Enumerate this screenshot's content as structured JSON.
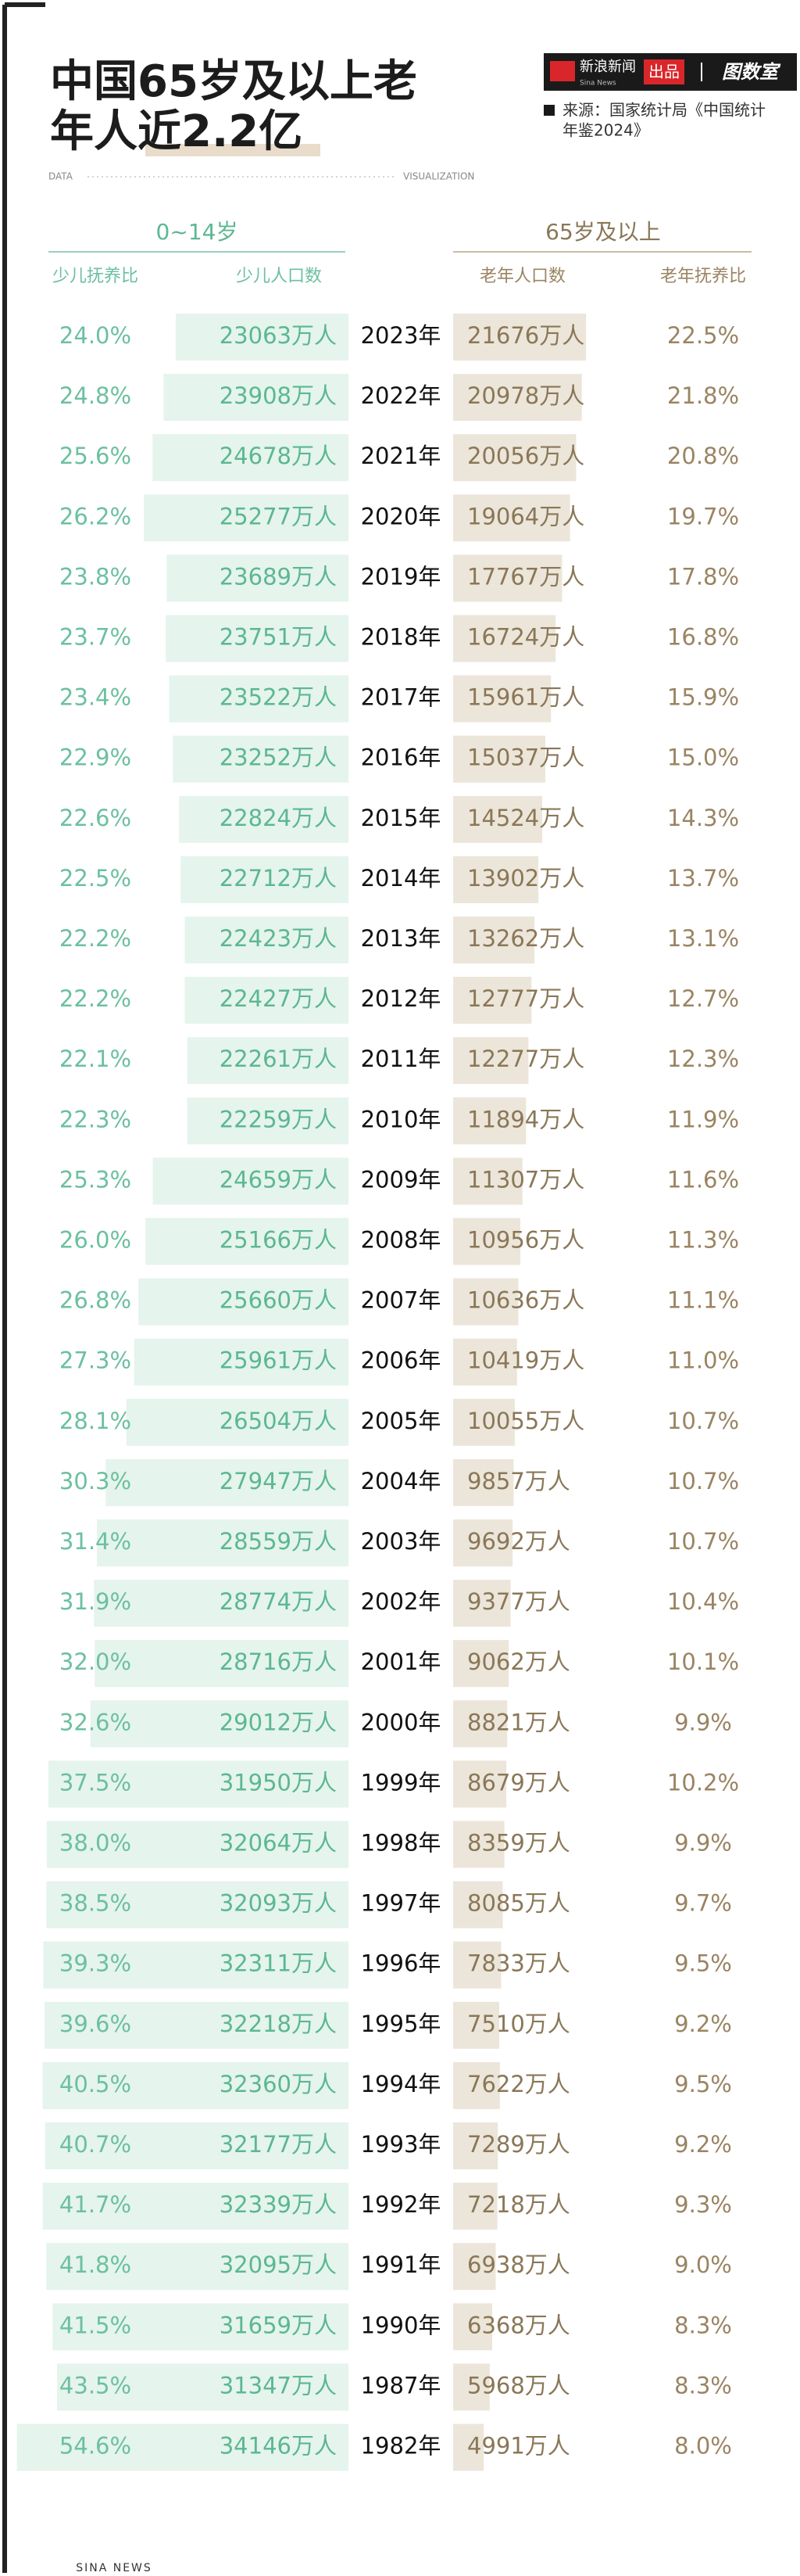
{
  "header": {
    "title_lines": [
      "中国65岁及以上老",
      "年人近2.2亿"
    ],
    "brand": "新浪新闻",
    "brand_en": "Sina News",
    "produced": "出品",
    "column": "图数室",
    "source_lines": [
      "来源：国家统计局《中国统计",
      "年鉴2024》"
    ],
    "data_label": "DATA",
    "vis_label": "VISUALIZATION"
  },
  "chart_data": {
    "type": "mirrored-bar",
    "groups": [
      "0~14岁",
      "65岁及以上"
    ],
    "categories": [
      "2023年",
      "2022年",
      "2021年",
      "2020年",
      "2019年",
      "2018年",
      "2017年",
      "2016年",
      "2015年",
      "2014年",
      "2013年",
      "2012年",
      "2011年",
      "2010年",
      "2009年",
      "2008年",
      "2007年",
      "2006年",
      "2005年",
      "2004年",
      "2003年",
      "2002年",
      "2001年",
      "2000年",
      "1999年",
      "1998年",
      "1997年",
      "1996年",
      "1995年",
      "1994年",
      "1993年",
      "1992年",
      "1991年",
      "1990年",
      "1987年",
      "1982年"
    ],
    "left_ratio": {
      "name": "少儿抚养比",
      "color": "#6cc0a0",
      "values": [
        "24.0%",
        "24.8%",
        "25.6%",
        "26.2%",
        "23.8%",
        "23.7%",
        "23.4%",
        "22.9%",
        "22.6%",
        "22.5%",
        "22.2%",
        "22.2%",
        "22.1%",
        "22.3%",
        "25.3%",
        "26.0%",
        "26.8%",
        "27.3%",
        "28.1%",
        "30.3%",
        "31.4%",
        "31.9%",
        "32.0%",
        "32.6%",
        "37.5%",
        "38.0%",
        "38.5%",
        "39.3%",
        "39.6%",
        "40.5%",
        "40.7%",
        "41.7%",
        "41.8%",
        "41.5%",
        "43.5%",
        "54.6%"
      ]
    },
    "series": [
      {
        "name": "少儿人口数",
        "color": "#e5f4ed",
        "text_color": "#5cb793",
        "xlim": [
          11000,
          35000
        ],
        "values": [
          23063,
          23908,
          24678,
          25277,
          23689,
          23751,
          23522,
          23252,
          22824,
          22712,
          22423,
          22427,
          22261,
          22259,
          24659,
          25166,
          25660,
          25961,
          26504,
          27947,
          28559,
          28774,
          28716,
          29012,
          31950,
          32064,
          32093,
          32311,
          32218,
          32360,
          32177,
          32339,
          32095,
          31659,
          31347,
          34146
        ],
        "value_labels": [
          "23063万人",
          "23908万人",
          "24678万人",
          "25277万人",
          "23689万人",
          "23751万人",
          "23522万人",
          "23252万人",
          "22824万人",
          "22712万人",
          "22423万人",
          "22427万人",
          "22261万人",
          "22259万人",
          "24659万人",
          "25166万人",
          "25660万人",
          "25961万人",
          "26504万人",
          "27947万人",
          "28559万人",
          "28774万人",
          "28716万人",
          "29012万人",
          "31950万人",
          "32064万人",
          "32093万人",
          "32311万人",
          "32218万人",
          "32360万人",
          "32177万人",
          "32339万人",
          "32095万人",
          "31659万人",
          "31347万人",
          "34146万人"
        ]
      },
      {
        "name": "老年人口数",
        "color": "#ece5d9",
        "text_color": "#8a7757",
        "xlim": [
          0,
          60000
        ],
        "values": [
          21676,
          20978,
          20056,
          19064,
          17767,
          16724,
          15961,
          15037,
          14524,
          13902,
          13262,
          12777,
          12277,
          11894,
          11307,
          10956,
          10636,
          10419,
          10055,
          9857,
          9692,
          9377,
          9062,
          8821,
          8679,
          8359,
          8085,
          7833,
          7510,
          7622,
          7289,
          7218,
          6938,
          6368,
          5968,
          4991
        ],
        "value_labels": [
          "21676万人",
          "20978万人",
          "20056万人",
          "19064万人",
          "17767万人",
          "16724万人",
          "15961万人",
          "15037万人",
          "14524万人",
          "13902万人",
          "13262万人",
          "12777万人",
          "12277万人",
          "11894万人",
          "11307万人",
          "10956万人",
          "10636万人",
          "10419万人",
          "10055万人",
          "9857万人",
          "9692万人",
          "9377万人",
          "9062万人",
          "8821万人",
          "8679万人",
          "8359万人",
          "8085万人",
          "7833万人",
          "7510万人",
          "7622万人",
          "7289万人",
          "7218万人",
          "6938万人",
          "6368万人",
          "5968万人",
          "4991万人"
        ]
      }
    ],
    "right_ratio": {
      "name": "老年抚养比",
      "color": "#9a8462",
      "values": [
        "22.5%",
        "21.8%",
        "20.8%",
        "19.7%",
        "17.8%",
        "16.8%",
        "15.9%",
        "15.0%",
        "14.3%",
        "13.7%",
        "13.1%",
        "12.7%",
        "12.3%",
        "11.9%",
        "11.6%",
        "11.3%",
        "11.1%",
        "11.0%",
        "10.7%",
        "10.7%",
        "10.7%",
        "10.4%",
        "10.1%",
        "9.9%",
        "10.2%",
        "9.9%",
        "9.7%",
        "9.5%",
        "9.2%",
        "9.5%",
        "9.2%",
        "9.3%",
        "9.0%",
        "8.3%",
        "8.3%",
        "8.0%"
      ]
    }
  },
  "footer": "SINA NEWS"
}
